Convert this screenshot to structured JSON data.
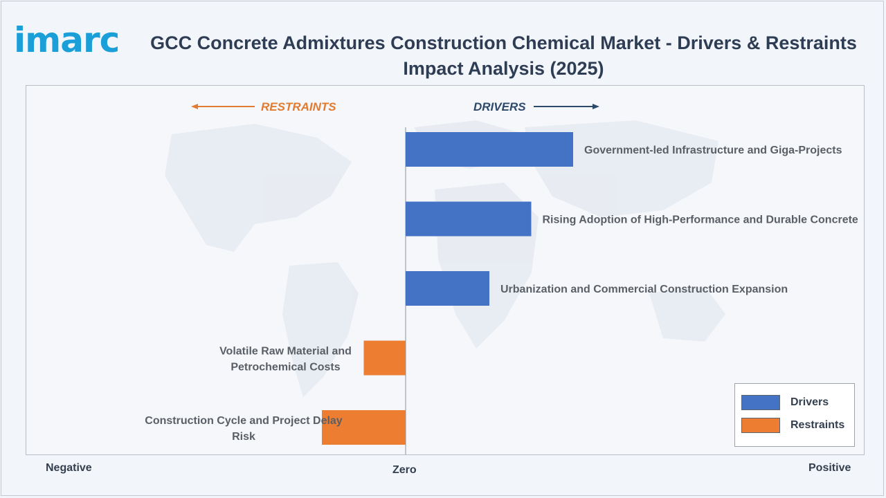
{
  "brand": {
    "logo_text": "imarc",
    "color": "#1a9fd9"
  },
  "title": "GCC Concrete Admixtures Construction Chemical Market - Drivers & Restraints Impact Analysis (2025)",
  "colors": {
    "drivers": "#4472c4",
    "restraints": "#ed7d31",
    "restraints_heading": "#e07b31",
    "drivers_heading": "#2e4a6b",
    "label_text": "#5a5f66"
  },
  "headings": {
    "restraints": "RESTRAINTS",
    "drivers": "DRIVERS"
  },
  "axis": {
    "negative": "Negative",
    "zero": "Zero",
    "positive": "Positive"
  },
  "legend": {
    "drivers": "Drivers",
    "restraints": "Restraints"
  },
  "chart_data": {
    "type": "bar",
    "orientation": "horizontal",
    "title": "GCC Concrete Admixtures Construction Chemical Market - Drivers & Restraints Impact Analysis (2025)",
    "xlim": [
      -1,
      1
    ],
    "grid": false,
    "legend_position": "bottom-right",
    "categories": [
      "Government-led Infrastructure and Giga-Projects",
      "Rising Adoption of High-Performance and Durable Concrete",
      "Urbanization and Commercial Construction Expansion",
      "Volatile Raw Material and Petrochemical Costs",
      "Construction Cycle and Project Delay Risk"
    ],
    "series": [
      {
        "name": "Drivers",
        "values": [
          0.44,
          0.33,
          0.22,
          null,
          null
        ]
      },
      {
        "name": "Restraints",
        "values": [
          null,
          null,
          null,
          -0.11,
          -0.22
        ]
      }
    ]
  }
}
